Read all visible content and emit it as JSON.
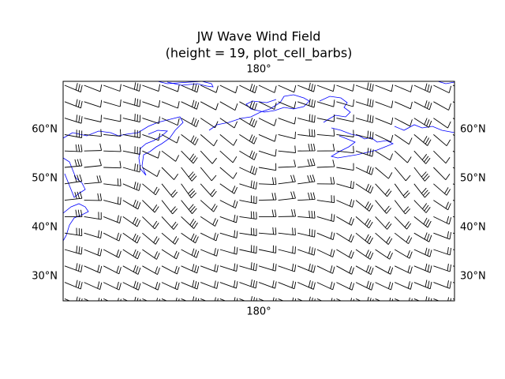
{
  "title": "JW Wave Wind Field",
  "subtitle": "(height = 19, plot_cell_barbs)",
  "lat_labels": [
    "60°N",
    "50°N",
    "40°N",
    "30°N"
  ],
  "lon_labels": [
    "180°"
  ]
}
